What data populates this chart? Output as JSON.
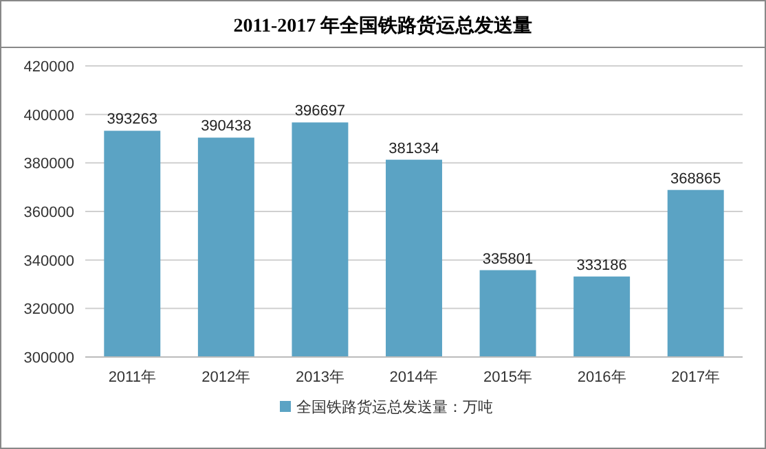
{
  "chart_data": {
    "type": "bar",
    "title": "2011-2017 年全国铁路货运总发送量",
    "categories": [
      "2011年",
      "2012年",
      "2013年",
      "2014年",
      "2015年",
      "2016年",
      "2017年"
    ],
    "series": [
      {
        "name": "全国铁路货运总发送量：万吨",
        "color": "#5ba3c4",
        "values": [
          393263,
          390438,
          396697,
          381334,
          335801,
          333186,
          368865
        ]
      }
    ],
    "ylim": [
      300000,
      420000
    ],
    "yticks": [
      300000,
      320000,
      340000,
      360000,
      380000,
      400000,
      420000
    ],
    "grid": "y",
    "legend": "bottom",
    "data_labels": true
  }
}
